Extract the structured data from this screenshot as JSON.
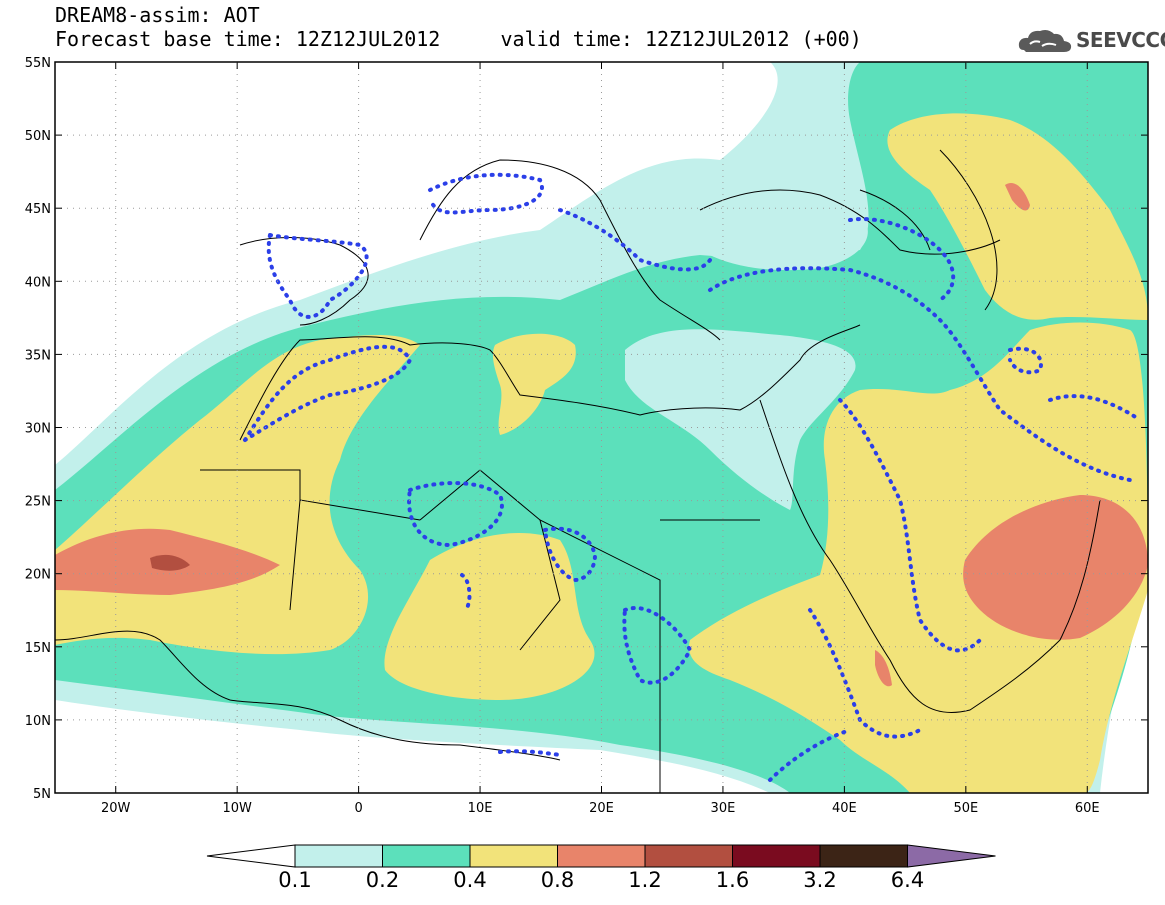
{
  "header": {
    "title_line1": "DREAM8-assim: AOT",
    "title_line2": "Forecast base time: 12Z12JUL2012     valid time: 12Z12JUL2012 (+00)",
    "logo_text": "SEEVCCC"
  },
  "map": {
    "projection": "equirectangular",
    "lon_range": [
      -25,
      65
    ],
    "lat_range": [
      5,
      55
    ],
    "lat_ticks": [
      {
        "lat": 55,
        "label": "55N"
      },
      {
        "lat": 50,
        "label": "50N"
      },
      {
        "lat": 45,
        "label": "45N"
      },
      {
        "lat": 40,
        "label": "40N"
      },
      {
        "lat": 35,
        "label": "35N"
      },
      {
        "lat": 30,
        "label": "30N"
      },
      {
        "lat": 25,
        "label": "25N"
      },
      {
        "lat": 20,
        "label": "20N"
      },
      {
        "lat": 15,
        "label": "15N"
      },
      {
        "lat": 10,
        "label": "10N"
      },
      {
        "lat": 5,
        "label": "5N"
      }
    ],
    "lon_ticks": [
      {
        "lon": -20,
        "label": "20W"
      },
      {
        "lon": -10,
        "label": "10W"
      },
      {
        "lon": 0,
        "label": "0"
      },
      {
        "lon": 10,
        "label": "10E"
      },
      {
        "lon": 20,
        "label": "20E"
      },
      {
        "lon": 30,
        "label": "30E"
      },
      {
        "lon": 40,
        "label": "40E"
      },
      {
        "lon": 50,
        "label": "50E"
      },
      {
        "lon": 60,
        "label": "60E"
      }
    ],
    "grid_dotted": true,
    "field_colors": {
      "0.1-0.2": "#c2f0eb",
      "0.2-0.4": "#5ce0bb",
      "0.4-0.8": "#f2e37a",
      "0.8-1.2": "#e8846a",
      "1.2-1.6": "#b24f40",
      "1.6-3.2": "#7a0b1f",
      "3.2-6.4": "#3c2416",
      ">6.4": "#8c6aa6"
    },
    "contour_color": "#2b3fe8"
  },
  "colorbar": {
    "labels": [
      "0.1",
      "0.2",
      "0.4",
      "0.8",
      "1.2",
      "1.6",
      "3.2",
      "6.4"
    ],
    "colors": [
      "#c2f0eb",
      "#5ce0bb",
      "#f2e37a",
      "#e8846a",
      "#b24f40",
      "#7a0b1f",
      "#3c2416"
    ],
    "under_color": "#ffffff",
    "over_color": "#8c6aa6"
  }
}
